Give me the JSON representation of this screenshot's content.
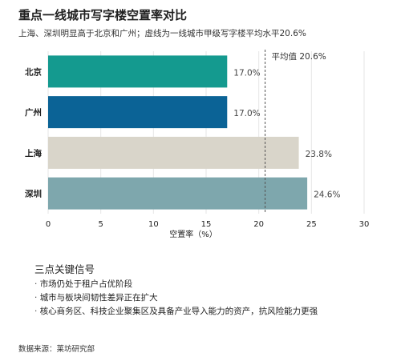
{
  "chart_data": {
    "type": "bar",
    "orientation": "horizontal",
    "title": "重点一线城市写字楼空置率对比",
    "subtitle": "上海、深圳明显高于北京和广州；虚线为一线城市甲级写字楼平均水平20.6%",
    "xlabel": "空置率（%）",
    "ylabel": "",
    "categories": [
      "北京",
      "广州",
      "上海",
      "深圳"
    ],
    "values": [
      17.0,
      17.0,
      23.8,
      24.6
    ],
    "value_labels": [
      "17.0%",
      "17.0%",
      "23.8%",
      "24.6%"
    ],
    "colors": [
      "#149a8f",
      "#0b6396",
      "#d9d5ca",
      "#7ea7ad"
    ],
    "xlim": [
      0,
      30
    ],
    "xticks": [
      0,
      5,
      10,
      15,
      20,
      25,
      30
    ],
    "xtick_labels": [
      "0",
      "5",
      "10",
      "15",
      "20",
      "25",
      "30"
    ],
    "grid": true,
    "reference_line": {
      "value": 20.6,
      "label": "平均值 20.6%",
      "style": "dashed"
    }
  },
  "notes": {
    "title": "三点关键信号",
    "items": [
      "市场仍处于租户占优阶段",
      "城市与板块间韧性差异正在扩大",
      "核心商务区、科技企业聚集区及具备产业导入能力的资产，抗风险能力更强"
    ]
  },
  "source": "数据来源：莱坊研究部"
}
